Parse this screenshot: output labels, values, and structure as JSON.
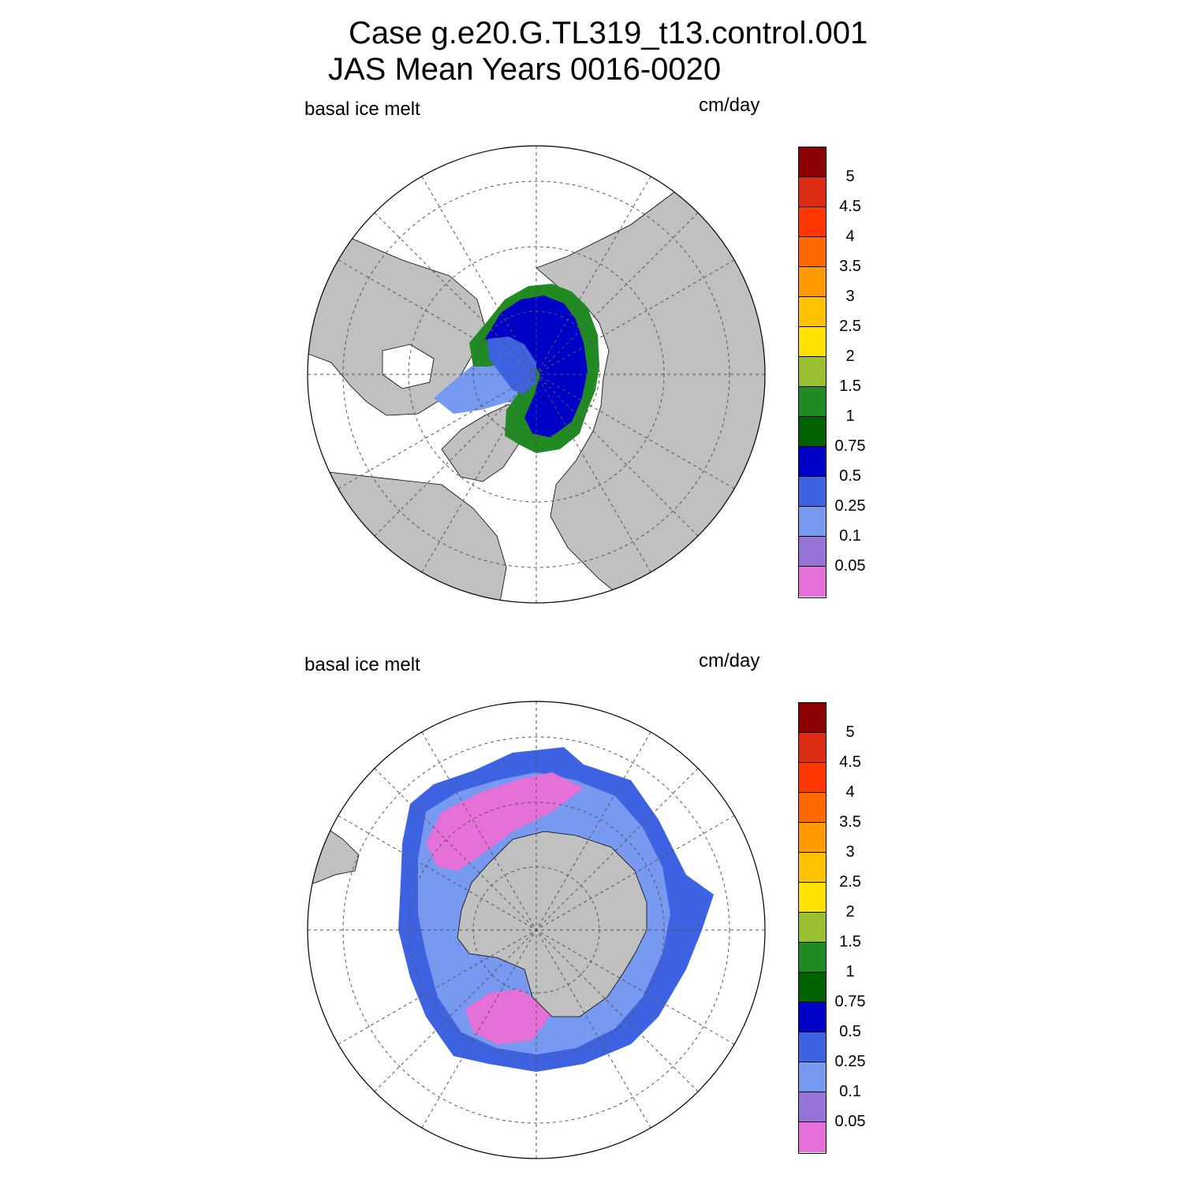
{
  "title": {
    "line1": "Case g.e20.G.TL319_t13.control.001",
    "line2": "JAS Mean   Years 0016-0020"
  },
  "panels": [
    {
      "id": "north",
      "variable_label": "basal ice melt",
      "units_label": "cm/day",
      "hemisphere": "north-polar-stereographic"
    },
    {
      "id": "south",
      "variable_label": "basal ice melt",
      "units_label": "cm/day",
      "hemisphere": "south-polar-stereographic"
    }
  ],
  "colorbar": {
    "levels": [
      "0.05",
      "0.1",
      "0.25",
      "0.5",
      "0.75",
      "1",
      "1.5",
      "2",
      "2.5",
      "3",
      "3.5",
      "4",
      "4.5",
      "5"
    ],
    "colors": [
      "#e570d8",
      "#9673d6",
      "#7799f0",
      "#3d63e3",
      "#0000c6",
      "#006200",
      "#218a22",
      "#99c132",
      "#ffe100",
      "#ffc200",
      "#ff9a00",
      "#ff6a00",
      "#ff3600",
      "#dd2c14",
      "#8b0000"
    ]
  },
  "map_colors": {
    "land": "#c0c0c0",
    "no_ice_ocean": "#ffffff",
    "grid": "#555555"
  }
}
